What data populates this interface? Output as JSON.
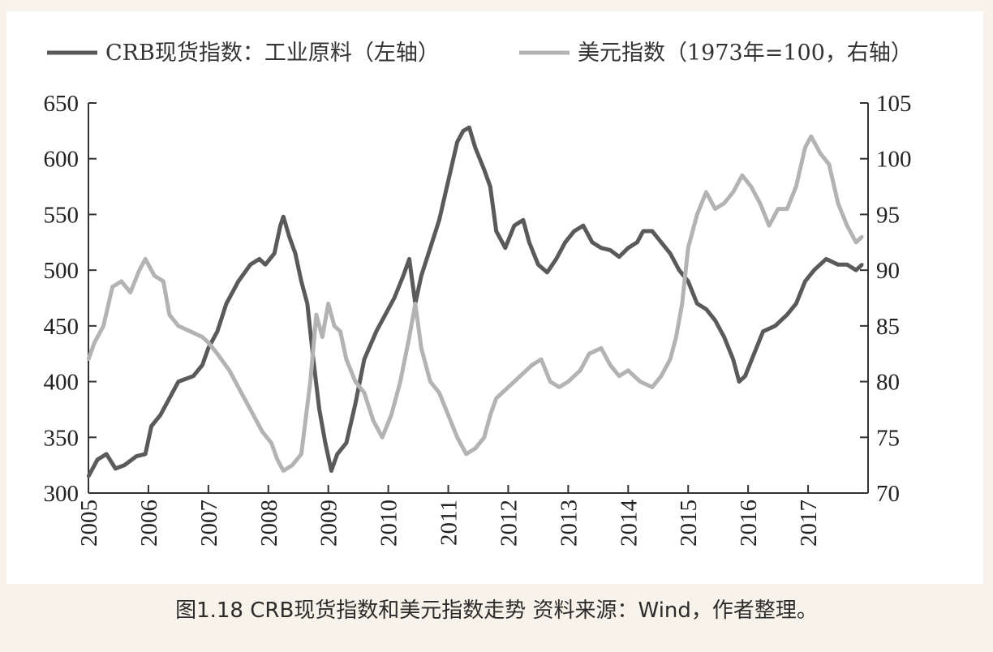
{
  "caption": "图1.18 CRB现货指数和美元指数走势  资料来源：Wind，作者整理。",
  "chart_data": {
    "type": "line",
    "x_ticks": [
      "2005",
      "2006",
      "2007",
      "2008",
      "2009",
      "2010",
      "2011",
      "2012",
      "2013",
      "2014",
      "2015",
      "2016",
      "2017"
    ],
    "xlim": [
      2005,
      2018
    ],
    "left_axis": {
      "ylim": [
        300,
        650
      ],
      "ticks": [
        "650",
        "600",
        "550",
        "500",
        "450",
        "400",
        "350",
        "300"
      ]
    },
    "right_axis": {
      "ylim": [
        70,
        105
      ],
      "ticks": [
        "105",
        "100",
        "95",
        "90",
        "85",
        "80",
        "75",
        "70"
      ]
    },
    "legend_placement": "top",
    "series": [
      {
        "name": "CRB现货指数：工业原料（左轴）",
        "axis": "left",
        "color": "#5a5a5a",
        "points": [
          [
            2005.0,
            315
          ],
          [
            2005.15,
            330
          ],
          [
            2005.3,
            335
          ],
          [
            2005.45,
            322
          ],
          [
            2005.6,
            325
          ],
          [
            2005.8,
            333
          ],
          [
            2005.95,
            335
          ],
          [
            2006.05,
            360
          ],
          [
            2006.2,
            370
          ],
          [
            2006.35,
            385
          ],
          [
            2006.5,
            400
          ],
          [
            2006.75,
            405
          ],
          [
            2006.9,
            415
          ],
          [
            2007.0,
            430
          ],
          [
            2007.15,
            445
          ],
          [
            2007.3,
            470
          ],
          [
            2007.5,
            490
          ],
          [
            2007.7,
            505
          ],
          [
            2007.85,
            510
          ],
          [
            2007.95,
            505
          ],
          [
            2008.1,
            515
          ],
          [
            2008.2,
            540
          ],
          [
            2008.25,
            548
          ],
          [
            2008.35,
            530
          ],
          [
            2008.45,
            515
          ],
          [
            2008.55,
            490
          ],
          [
            2008.65,
            470
          ],
          [
            2008.75,
            420
          ],
          [
            2008.85,
            375
          ],
          [
            2008.95,
            345
          ],
          [
            2009.05,
            320
          ],
          [
            2009.15,
            335
          ],
          [
            2009.3,
            345
          ],
          [
            2009.45,
            380
          ],
          [
            2009.6,
            420
          ],
          [
            2009.8,
            445
          ],
          [
            2009.95,
            460
          ],
          [
            2010.1,
            475
          ],
          [
            2010.25,
            495
          ],
          [
            2010.35,
            510
          ],
          [
            2010.45,
            470
          ],
          [
            2010.55,
            495
          ],
          [
            2010.7,
            520
          ],
          [
            2010.85,
            545
          ],
          [
            2011.0,
            580
          ],
          [
            2011.15,
            615
          ],
          [
            2011.25,
            625
          ],
          [
            2011.35,
            628
          ],
          [
            2011.45,
            610
          ],
          [
            2011.6,
            590
          ],
          [
            2011.7,
            575
          ],
          [
            2011.8,
            535
          ],
          [
            2011.95,
            520
          ],
          [
            2012.1,
            540
          ],
          [
            2012.25,
            545
          ],
          [
            2012.35,
            525
          ],
          [
            2012.5,
            505
          ],
          [
            2012.65,
            498
          ],
          [
            2012.8,
            510
          ],
          [
            2012.95,
            525
          ],
          [
            2013.1,
            535
          ],
          [
            2013.25,
            540
          ],
          [
            2013.4,
            525
          ],
          [
            2013.55,
            520
          ],
          [
            2013.7,
            518
          ],
          [
            2013.85,
            512
          ],
          [
            2014.0,
            520
          ],
          [
            2014.15,
            525
          ],
          [
            2014.25,
            535
          ],
          [
            2014.4,
            535
          ],
          [
            2014.55,
            525
          ],
          [
            2014.7,
            515
          ],
          [
            2014.85,
            500
          ],
          [
            2015.0,
            490
          ],
          [
            2015.15,
            470
          ],
          [
            2015.3,
            465
          ],
          [
            2015.45,
            455
          ],
          [
            2015.6,
            440
          ],
          [
            2015.75,
            420
          ],
          [
            2015.85,
            400
          ],
          [
            2015.95,
            405
          ],
          [
            2016.1,
            425
          ],
          [
            2016.25,
            445
          ],
          [
            2016.45,
            450
          ],
          [
            2016.65,
            460
          ],
          [
            2016.8,
            470
          ],
          [
            2016.95,
            490
          ],
          [
            2017.1,
            500
          ],
          [
            2017.3,
            510
          ],
          [
            2017.5,
            505
          ],
          [
            2017.65,
            505
          ],
          [
            2017.8,
            500
          ],
          [
            2017.9,
            505
          ]
        ]
      },
      {
        "name": "美元指数（1973年=100，右轴）",
        "axis": "right",
        "color": "#b3b3b3",
        "points": [
          [
            2005.0,
            82
          ],
          [
            2005.1,
            83.5
          ],
          [
            2005.25,
            85
          ],
          [
            2005.4,
            88.5
          ],
          [
            2005.55,
            89
          ],
          [
            2005.7,
            88
          ],
          [
            2005.85,
            90
          ],
          [
            2005.95,
            91
          ],
          [
            2006.1,
            89.5
          ],
          [
            2006.25,
            89
          ],
          [
            2006.35,
            86
          ],
          [
            2006.5,
            85
          ],
          [
            2006.7,
            84.5
          ],
          [
            2006.9,
            84
          ],
          [
            2007.0,
            83.5
          ],
          [
            2007.15,
            82.5
          ],
          [
            2007.35,
            81
          ],
          [
            2007.55,
            79
          ],
          [
            2007.75,
            77
          ],
          [
            2007.9,
            75.5
          ],
          [
            2008.05,
            74.5
          ],
          [
            2008.15,
            73
          ],
          [
            2008.25,
            72
          ],
          [
            2008.4,
            72.5
          ],
          [
            2008.55,
            73.5
          ],
          [
            2008.7,
            80
          ],
          [
            2008.8,
            86
          ],
          [
            2008.9,
            84
          ],
          [
            2009.0,
            87
          ],
          [
            2009.1,
            85
          ],
          [
            2009.2,
            84.5
          ],
          [
            2009.3,
            82
          ],
          [
            2009.45,
            80
          ],
          [
            2009.6,
            79
          ],
          [
            2009.75,
            76.5
          ],
          [
            2009.9,
            75
          ],
          [
            2010.05,
            77
          ],
          [
            2010.2,
            80
          ],
          [
            2010.35,
            84
          ],
          [
            2010.45,
            87
          ],
          [
            2010.55,
            83
          ],
          [
            2010.7,
            80
          ],
          [
            2010.85,
            79
          ],
          [
            2011.0,
            77
          ],
          [
            2011.15,
            75
          ],
          [
            2011.3,
            73.5
          ],
          [
            2011.45,
            74
          ],
          [
            2011.6,
            75
          ],
          [
            2011.7,
            77
          ],
          [
            2011.8,
            78.5
          ],
          [
            2012.0,
            79.5
          ],
          [
            2012.2,
            80.5
          ],
          [
            2012.4,
            81.5
          ],
          [
            2012.55,
            82
          ],
          [
            2012.7,
            80
          ],
          [
            2012.85,
            79.5
          ],
          [
            2013.0,
            80
          ],
          [
            2013.2,
            81
          ],
          [
            2013.35,
            82.5
          ],
          [
            2013.55,
            83
          ],
          [
            2013.7,
            81.5
          ],
          [
            2013.85,
            80.5
          ],
          [
            2014.0,
            81
          ],
          [
            2014.2,
            80
          ],
          [
            2014.4,
            79.5
          ],
          [
            2014.55,
            80.5
          ],
          [
            2014.7,
            82
          ],
          [
            2014.8,
            84
          ],
          [
            2014.9,
            87
          ],
          [
            2015.0,
            92
          ],
          [
            2015.15,
            95
          ],
          [
            2015.3,
            97
          ],
          [
            2015.45,
            95.5
          ],
          [
            2015.6,
            96
          ],
          [
            2015.75,
            97
          ],
          [
            2015.9,
            98.5
          ],
          [
            2016.05,
            97.5
          ],
          [
            2016.2,
            96
          ],
          [
            2016.35,
            94
          ],
          [
            2016.5,
            95.5
          ],
          [
            2016.65,
            95.5
          ],
          [
            2016.8,
            97.5
          ],
          [
            2016.95,
            101
          ],
          [
            2017.05,
            102
          ],
          [
            2017.2,
            100.5
          ],
          [
            2017.35,
            99.5
          ],
          [
            2017.5,
            96
          ],
          [
            2017.65,
            94
          ],
          [
            2017.8,
            92.5
          ],
          [
            2017.9,
            93
          ]
        ]
      }
    ]
  }
}
